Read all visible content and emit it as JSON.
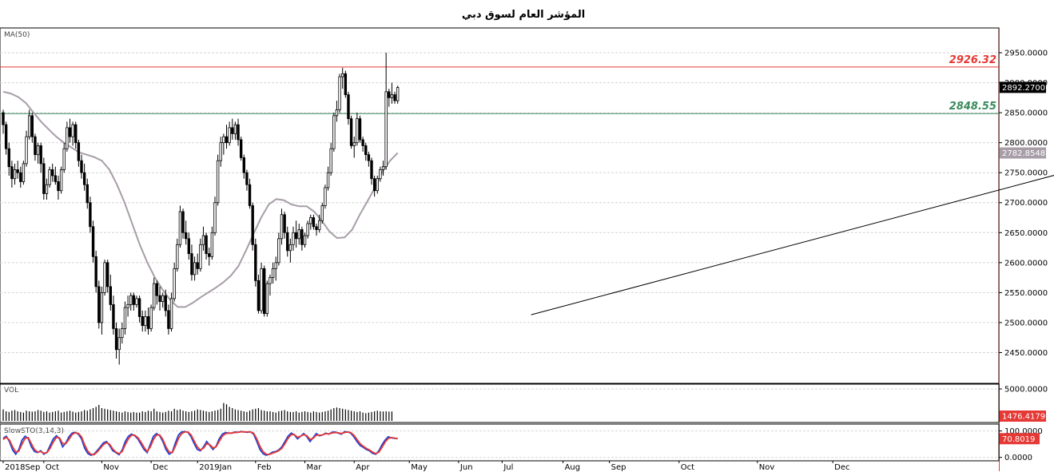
{
  "chart_data": {
    "type": "candlestick",
    "title": "المؤشر العام لسوق دبي",
    "price_panel": {
      "indicator_label": "MA(50)",
      "ylim": [
        2400,
        2990
      ],
      "yticks": [
        "2450.0000",
        "2500.0000",
        "2550.0000",
        "2600.0000",
        "2650.0000",
        "2700.0000",
        "2750.0000",
        "2800.0000",
        "2850.0000",
        "2900.0000",
        "2950.0000"
      ],
      "last_price": "2892.2700",
      "ma_last": "2782.8548",
      "resistance": {
        "label": "2926.32",
        "value": 2926.32,
        "color": "#e53935"
      },
      "support": {
        "label": "2848.55",
        "value": 2848.55,
        "color": "#3a8a5c"
      },
      "trendline": {
        "from": [
          182,
          2513
        ],
        "to": [
          482,
          2900
        ]
      },
      "ohlc": [
        [
          2850,
          2855,
          2815,
          2830
        ],
        [
          2830,
          2835,
          2780,
          2790
        ],
        [
          2790,
          2800,
          2745,
          2760
        ],
        [
          2760,
          2770,
          2725,
          2740
        ],
        [
          2740,
          2765,
          2730,
          2755
        ],
        [
          2755,
          2770,
          2740,
          2750
        ],
        [
          2750,
          2760,
          2725,
          2735
        ],
        [
          2735,
          2770,
          2730,
          2765
        ],
        [
          2765,
          2820,
          2760,
          2810
        ],
        [
          2810,
          2855,
          2805,
          2845
        ],
        [
          2845,
          2850,
          2800,
          2810
        ],
        [
          2810,
          2815,
          2770,
          2780
        ],
        [
          2780,
          2800,
          2765,
          2795
        ],
        [
          2795,
          2800,
          2750,
          2765
        ],
        [
          2765,
          2775,
          2705,
          2715
        ],
        [
          2715,
          2740,
          2705,
          2730
        ],
        [
          2730,
          2760,
          2725,
          2755
        ],
        [
          2755,
          2765,
          2735,
          2745
        ],
        [
          2745,
          2760,
          2730,
          2735
        ],
        [
          2735,
          2745,
          2705,
          2720
        ],
        [
          2720,
          2760,
          2715,
          2755
        ],
        [
          2755,
          2800,
          2750,
          2790
        ],
        [
          2790,
          2835,
          2785,
          2825
        ],
        [
          2825,
          2840,
          2800,
          2810
        ],
        [
          2810,
          2835,
          2795,
          2830
        ],
        [
          2830,
          2835,
          2790,
          2800
        ],
        [
          2800,
          2805,
          2760,
          2770
        ],
        [
          2770,
          2780,
          2740,
          2750
        ],
        [
          2750,
          2765,
          2720,
          2730
        ],
        [
          2730,
          2740,
          2690,
          2700
        ],
        [
          2700,
          2710,
          2650,
          2660
        ],
        [
          2660,
          2670,
          2600,
          2610
        ],
        [
          2610,
          2620,
          2550,
          2560
        ],
        [
          2560,
          2570,
          2490,
          2500
        ],
        [
          2500,
          2560,
          2480,
          2550
        ],
        [
          2550,
          2605,
          2545,
          2600
        ],
        [
          2600,
          2605,
          2550,
          2560
        ],
        [
          2560,
          2580,
          2520,
          2530
        ],
        [
          2530,
          2545,
          2480,
          2490
        ],
        [
          2490,
          2500,
          2440,
          2455
        ],
        [
          2455,
          2490,
          2430,
          2475
        ],
        [
          2475,
          2500,
          2465,
          2490
        ],
        [
          2490,
          2535,
          2480,
          2525
        ],
        [
          2525,
          2545,
          2510,
          2530
        ],
        [
          2530,
          2550,
          2520,
          2545
        ],
        [
          2545,
          2550,
          2520,
          2530
        ],
        [
          2530,
          2545,
          2525,
          2540
        ],
        [
          2540,
          2545,
          2500,
          2510
        ],
        [
          2510,
          2520,
          2485,
          2495
        ],
        [
          2495,
          2520,
          2485,
          2510
        ],
        [
          2510,
          2525,
          2480,
          2490
        ],
        [
          2490,
          2530,
          2485,
          2525
        ],
        [
          2525,
          2575,
          2520,
          2565
        ],
        [
          2565,
          2570,
          2530,
          2545
        ],
        [
          2545,
          2560,
          2520,
          2535
        ],
        [
          2535,
          2550,
          2525,
          2545
        ],
        [
          2545,
          2555,
          2510,
          2520
        ],
        [
          2520,
          2530,
          2480,
          2490
        ],
        [
          2490,
          2550,
          2485,
          2540
        ],
        [
          2540,
          2600,
          2535,
          2590
        ],
        [
          2590,
          2640,
          2585,
          2630
        ],
        [
          2630,
          2695,
          2625,
          2685
        ],
        [
          2685,
          2690,
          2640,
          2650
        ],
        [
          2650,
          2670,
          2630,
          2640
        ],
        [
          2640,
          2650,
          2605,
          2615
        ],
        [
          2615,
          2630,
          2570,
          2580
        ],
        [
          2580,
          2610,
          2570,
          2600
        ],
        [
          2600,
          2615,
          2580,
          2590
        ],
        [
          2590,
          2640,
          2585,
          2630
        ],
        [
          2630,
          2660,
          2620,
          2645
        ],
        [
          2645,
          2650,
          2605,
          2615
        ],
        [
          2615,
          2625,
          2595,
          2610
        ],
        [
          2610,
          2660,
          2605,
          2650
        ],
        [
          2650,
          2710,
          2645,
          2700
        ],
        [
          2700,
          2780,
          2695,
          2770
        ],
        [
          2770,
          2810,
          2760,
          2800
        ],
        [
          2800,
          2815,
          2780,
          2810
        ],
        [
          2810,
          2830,
          2790,
          2800
        ],
        [
          2800,
          2835,
          2795,
          2825
        ],
        [
          2825,
          2840,
          2805,
          2815
        ],
        [
          2815,
          2835,
          2805,
          2830
        ],
        [
          2830,
          2840,
          2795,
          2805
        ],
        [
          2805,
          2810,
          2770,
          2775
        ],
        [
          2775,
          2780,
          2740,
          2750
        ],
        [
          2750,
          2755,
          2720,
          2730
        ],
        [
          2730,
          2740,
          2690,
          2695
        ],
        [
          2695,
          2700,
          2620,
          2630
        ],
        [
          2630,
          2640,
          2560,
          2570
        ],
        [
          2570,
          2580,
          2515,
          2520
        ],
        [
          2520,
          2600,
          2515,
          2590
        ],
        [
          2590,
          2595,
          2510,
          2515
        ],
        [
          2515,
          2570,
          2510,
          2565
        ],
        [
          2565,
          2580,
          2545,
          2575
        ],
        [
          2575,
          2600,
          2565,
          2590
        ],
        [
          2590,
          2610,
          2570,
          2600
        ],
        [
          2600,
          2650,
          2595,
          2640
        ],
        [
          2640,
          2690,
          2630,
          2680
        ],
        [
          2680,
          2685,
          2640,
          2650
        ],
        [
          2650,
          2660,
          2610,
          2620
        ],
        [
          2620,
          2640,
          2600,
          2630
        ],
        [
          2630,
          2660,
          2620,
          2650
        ],
        [
          2650,
          2670,
          2625,
          2640
        ],
        [
          2640,
          2665,
          2630,
          2655
        ],
        [
          2655,
          2660,
          2620,
          2630
        ],
        [
          2630,
          2650,
          2625,
          2645
        ],
        [
          2645,
          2670,
          2640,
          2665
        ],
        [
          2665,
          2680,
          2655,
          2675
        ],
        [
          2675,
          2680,
          2655,
          2660
        ],
        [
          2660,
          2665,
          2645,
          2655
        ],
        [
          2655,
          2680,
          2650,
          2670
        ],
        [
          2670,
          2700,
          2665,
          2695
        ],
        [
          2695,
          2730,
          2690,
          2725
        ],
        [
          2725,
          2760,
          2720,
          2750
        ],
        [
          2750,
          2800,
          2745,
          2790
        ],
        [
          2790,
          2850,
          2785,
          2845
        ],
        [
          2845,
          2870,
          2835,
          2855
        ],
        [
          2855,
          2915,
          2850,
          2910
        ],
        [
          2910,
          2925,
          2890,
          2915
        ],
        [
          2915,
          2920,
          2875,
          2880
        ],
        [
          2880,
          2885,
          2830,
          2840
        ],
        [
          2840,
          2845,
          2790,
          2795
        ],
        [
          2795,
          2810,
          2775,
          2800
        ],
        [
          2800,
          2850,
          2795,
          2840
        ],
        [
          2840,
          2845,
          2800,
          2805
        ],
        [
          2805,
          2810,
          2785,
          2795
        ],
        [
          2795,
          2800,
          2770,
          2780
        ],
        [
          2780,
          2785,
          2760,
          2770
        ],
        [
          2770,
          2775,
          2730,
          2740
        ],
        [
          2740,
          2745,
          2710,
          2720
        ],
        [
          2720,
          2745,
          2715,
          2740
        ],
        [
          2740,
          2760,
          2735,
          2755
        ],
        [
          2755,
          2770,
          2745,
          2760
        ],
        [
          2760,
          2950,
          2755,
          2885
        ],
        [
          2885,
          2890,
          2860,
          2875
        ],
        [
          2875,
          2900,
          2865,
          2880
        ],
        [
          2880,
          2885,
          2865,
          2870
        ],
        [
          2870,
          2895,
          2865,
          2892
        ]
      ],
      "ma_curve": [
        2885,
        2882,
        2876,
        2866,
        2850,
        2835,
        2822,
        2810,
        2800,
        2792,
        2784,
        2780,
        2776,
        2770,
        2755,
        2730,
        2700,
        2665,
        2630,
        2600,
        2575,
        2555,
        2538,
        2526,
        2526,
        2533,
        2542,
        2550,
        2558,
        2567,
        2578,
        2594,
        2620,
        2648,
        2675,
        2697,
        2706,
        2704,
        2697,
        2694,
        2694,
        2685,
        2670,
        2652,
        2641,
        2642,
        2655,
        2680,
        2702,
        2725,
        2752,
        2770,
        2783
      ]
    },
    "volume_panel": {
      "label": "VOL",
      "ymax_label": "5000.0000",
      "ymax": 5000,
      "last_value": "1476.4179",
      "values": [
        1800,
        1500,
        1400,
        1600,
        1700,
        1500,
        1400,
        1300,
        1600,
        1500,
        1450,
        1500,
        1700,
        1600,
        1400,
        1500,
        1300,
        1400,
        1500,
        1600,
        1300,
        1400,
        1500,
        1600,
        1450,
        1300,
        1400,
        1500,
        1700,
        1600,
        1800,
        2000,
        2200,
        2500,
        2000,
        1900,
        1800,
        1700,
        1600,
        1500,
        1400,
        1300,
        1500,
        1400,
        1300,
        1400,
        1300,
        1300,
        1500,
        1400,
        1600,
        1500,
        1900,
        1500,
        1400,
        1300,
        1400,
        1600,
        1500,
        1900,
        1700,
        1800,
        1600,
        1500,
        1400,
        1500,
        1600,
        1800,
        1700,
        1600,
        1500,
        1400,
        1500,
        1600,
        1700,
        1900,
        2800,
        2600,
        2200,
        2000,
        1800,
        1700,
        1600,
        1500,
        1400,
        1600,
        1800,
        1900,
        2000,
        1700,
        1600,
        1500,
        1500,
        1400,
        1300,
        1500,
        1600,
        1700,
        1500,
        1400,
        1400,
        1500,
        1300,
        1400,
        1500,
        1400,
        1300,
        1500,
        1400,
        1300,
        1400,
        1500,
        1600,
        1800,
        2000,
        2100,
        2000,
        1900,
        1800,
        1700,
        1600,
        1500,
        1400,
        1500,
        1300,
        1200,
        1300,
        1400,
        1500,
        1600,
        1500,
        1476,
        1500,
        1450,
        1476
      ]
    },
    "stoch_panel": {
      "label": "SlowSTO(3,14,3)",
      "yticks": [
        "100.0000",
        "0.0000"
      ],
      "ylim": [
        -10,
        120
      ],
      "last_value": "70.8019",
      "k": [
        72,
        80,
        60,
        28,
        12,
        30,
        65,
        80,
        72,
        40,
        22,
        18,
        25,
        12,
        20,
        45,
        70,
        82,
        70,
        40,
        55,
        78,
        92,
        95,
        88,
        70,
        35,
        15,
        8,
        12,
        25,
        40,
        55,
        60,
        45,
        25,
        18,
        10,
        28,
        60,
        80,
        88,
        82,
        70,
        50,
        30,
        18,
        50,
        80,
        90,
        82,
        60,
        30,
        12,
        20,
        55,
        85,
        96,
        98,
        95,
        78,
        52,
        30,
        25,
        40,
        60,
        45,
        30,
        42,
        70,
        88,
        94,
        92,
        92,
        96,
        95,
        98,
        96,
        95,
        97,
        88,
        60,
        30,
        14,
        8,
        12,
        20,
        22,
        28,
        40,
        60,
        80,
        92,
        85,
        70,
        80,
        90,
        78,
        60,
        75,
        90,
        82,
        85,
        92,
        88,
        95,
        96,
        92,
        88,
        97,
        96,
        92,
        78,
        60,
        45,
        38,
        30,
        25,
        15,
        12,
        25,
        48,
        66,
        78,
        74,
        72,
        71
      ],
      "d": [
        68,
        76,
        66,
        40,
        20,
        24,
        50,
        72,
        75,
        52,
        30,
        20,
        22,
        16,
        18,
        35,
        58,
        76,
        74,
        52,
        52,
        68,
        86,
        93,
        91,
        78,
        48,
        24,
        12,
        10,
        20,
        34,
        48,
        56,
        50,
        32,
        20,
        14,
        22,
        48,
        70,
        84,
        84,
        75,
        58,
        38,
        22,
        40,
        68,
        85,
        85,
        68,
        40,
        20,
        18,
        42,
        72,
        90,
        96,
        96,
        85,
        62,
        40,
        28,
        35,
        52,
        48,
        36,
        40,
        60,
        80,
        90,
        92,
        92,
        94,
        95,
        97,
        96,
        96,
        96,
        92,
        70,
        42,
        22,
        12,
        11,
        16,
        20,
        25,
        34,
        52,
        72,
        86,
        86,
        76,
        80,
        86,
        82,
        68,
        72,
        84,
        84,
        85,
        90,
        89,
        92,
        94,
        93,
        90,
        94,
        96,
        94,
        84,
        68,
        52,
        42,
        34,
        28,
        20,
        14,
        20,
        38,
        58,
        72,
        75,
        73,
        71
      ]
    },
    "x_labels": [
      {
        "label": "2018Sep",
        "idx": 0
      },
      {
        "label": "Oct",
        "idx": 14
      },
      {
        "label": "Nov",
        "idx": 34
      },
      {
        "label": "Dec",
        "idx": 51
      },
      {
        "label": "2019Jan",
        "idx": 67
      },
      {
        "label": "Feb",
        "idx": 87
      },
      {
        "label": "Mar",
        "idx": 104
      },
      {
        "label": "Apr",
        "idx": 121
      },
      {
        "label": "May",
        "idx": 140
      },
      {
        "label": "Jun",
        "idx": 157
      },
      {
        "label": "Jul",
        "idx": 172
      },
      {
        "label": "Aug",
        "idx": 193
      },
      {
        "label": "Sep",
        "idx": 209
      },
      {
        "label": "Oct",
        "idx": 233
      },
      {
        "label": "Nov",
        "idx": 260
      },
      {
        "label": "Dec",
        "idx": 286
      }
    ],
    "colors": {
      "candle": "#000000",
      "ma": "#a79ea8",
      "resistance": "#e53935",
      "support": "#3a8a5c",
      "trendline": "#000000",
      "stoch_k": "#1f3fd6",
      "stoch_d": "#e53935",
      "last_price_box": "#000000",
      "ma_box": "#a79ea8",
      "alert_box": "#e53935",
      "axis_border": "#e53935"
    }
  }
}
